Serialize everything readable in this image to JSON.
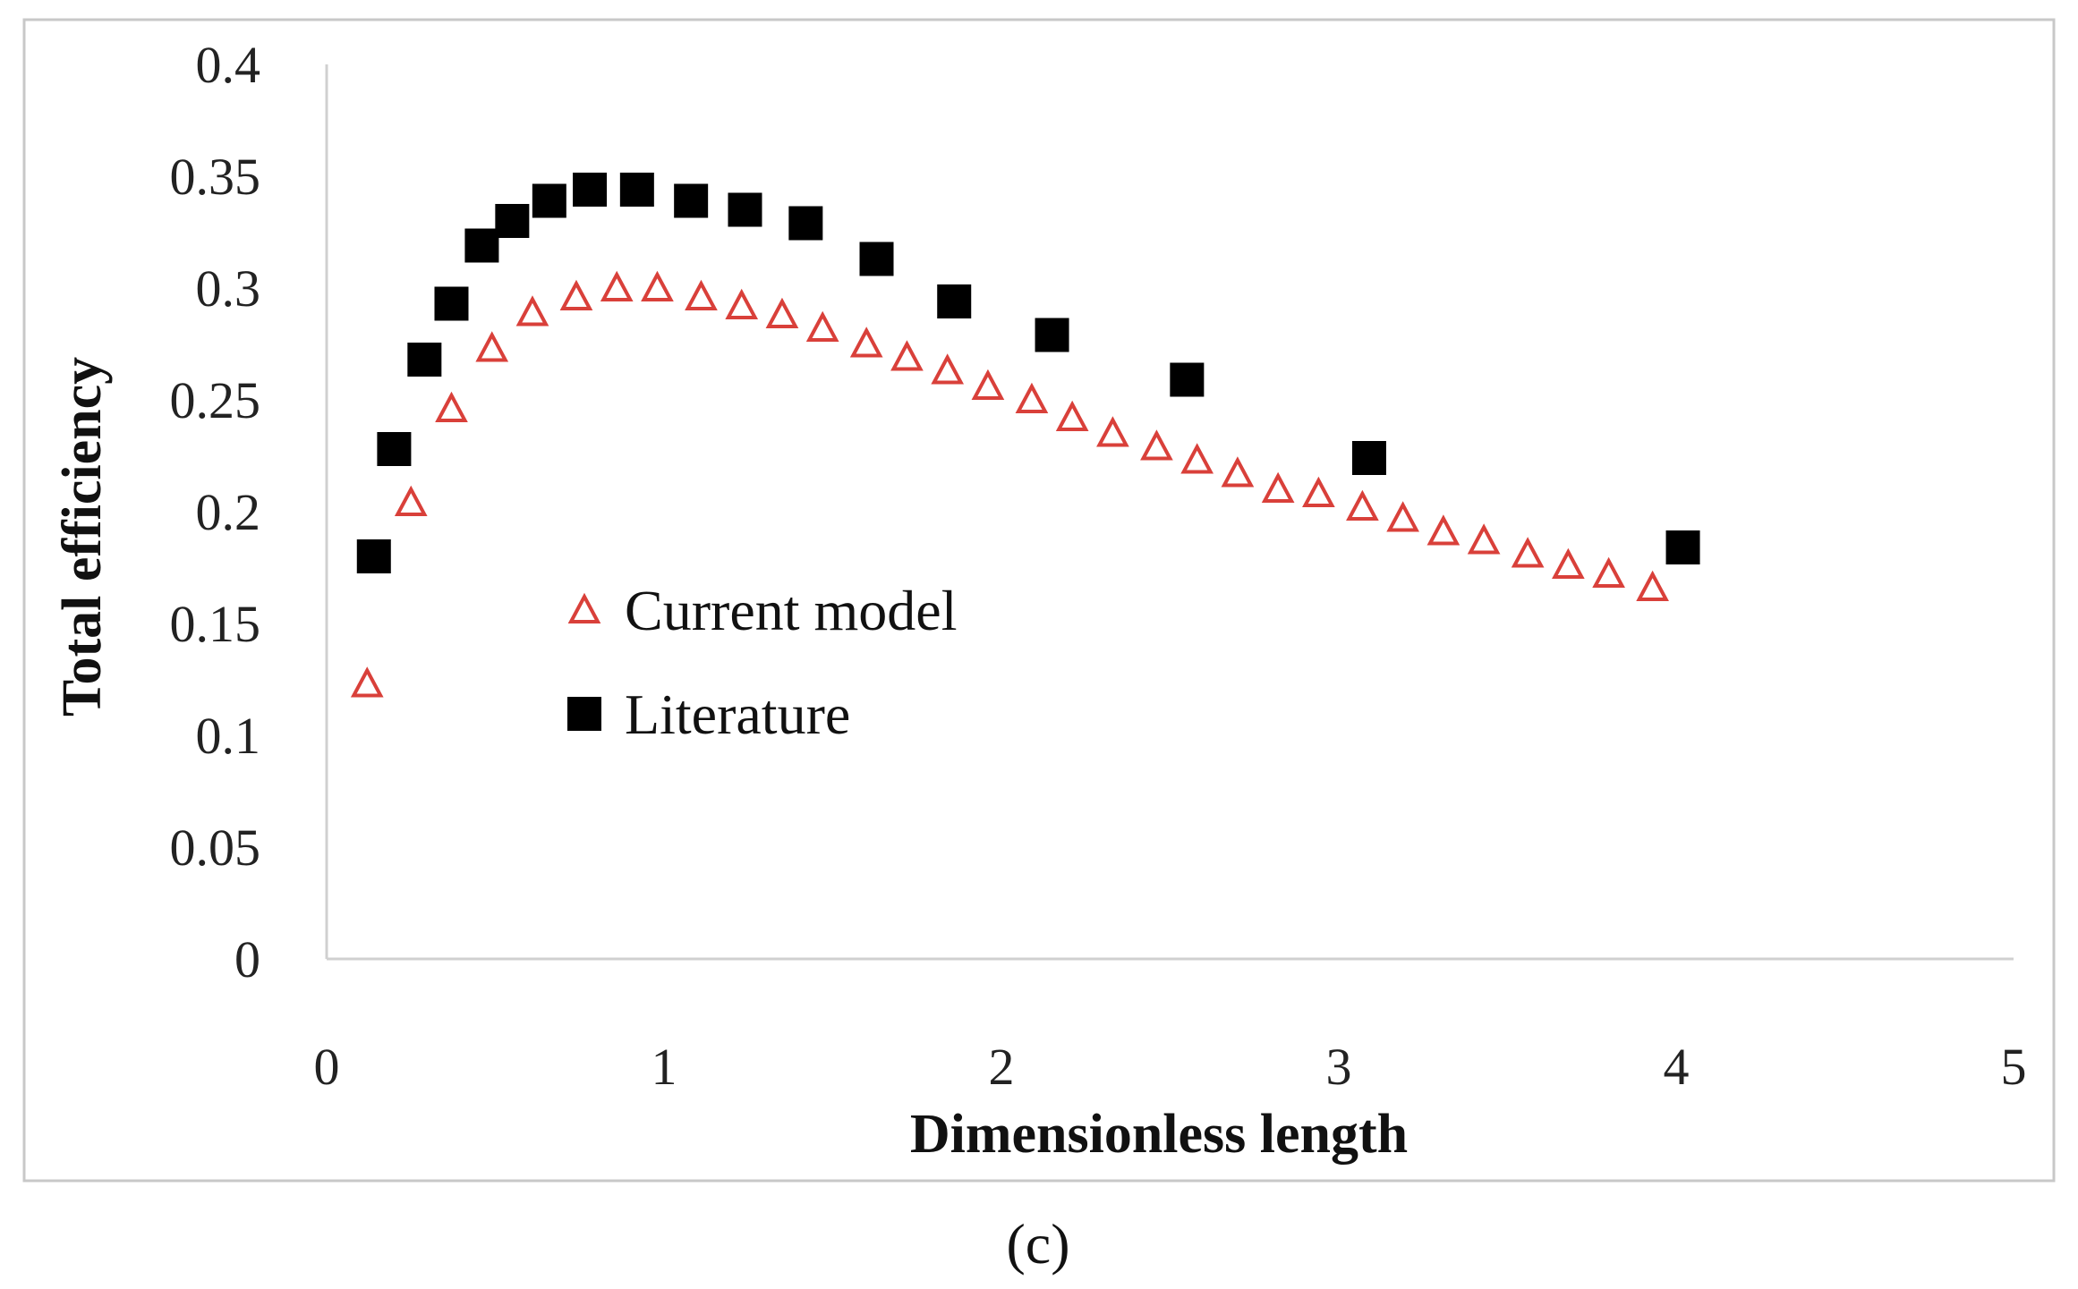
{
  "chart_data": {
    "type": "scatter",
    "title": "",
    "xlabel": "Dimensionless length",
    "ylabel": "Total efficiency",
    "panel_label": "(c)",
    "xlim": [
      0,
      5
    ],
    "ylim": [
      0,
      0.4
    ],
    "x_ticks": [
      "0",
      "1",
      "2",
      "3",
      "4",
      "5"
    ],
    "y_ticks": [
      "0",
      "0.05",
      "0.1",
      "0.15",
      "0.2",
      "0.25",
      "0.3",
      "0.35",
      "0.4"
    ],
    "grid": false,
    "legend_position": "center-left",
    "series": [
      {
        "name": "Current model",
        "marker": "triangle-open",
        "color": "#d9403a",
        "points": [
          [
            0.12,
            0.123
          ],
          [
            0.25,
            0.204
          ],
          [
            0.37,
            0.246
          ],
          [
            0.49,
            0.273
          ],
          [
            0.61,
            0.289
          ],
          [
            0.74,
            0.296
          ],
          [
            0.86,
            0.3
          ],
          [
            0.98,
            0.3
          ],
          [
            1.11,
            0.296
          ],
          [
            1.23,
            0.292
          ],
          [
            1.35,
            0.288
          ],
          [
            1.47,
            0.282
          ],
          [
            1.6,
            0.275
          ],
          [
            1.72,
            0.269
          ],
          [
            1.84,
            0.263
          ],
          [
            1.96,
            0.256
          ],
          [
            2.09,
            0.25
          ],
          [
            2.21,
            0.242
          ],
          [
            2.33,
            0.235
          ],
          [
            2.46,
            0.229
          ],
          [
            2.58,
            0.223
          ],
          [
            2.7,
            0.217
          ],
          [
            2.82,
            0.21
          ],
          [
            2.94,
            0.208
          ],
          [
            3.07,
            0.202
          ],
          [
            3.19,
            0.197
          ],
          [
            3.31,
            0.191
          ],
          [
            3.43,
            0.187
          ],
          [
            3.56,
            0.181
          ],
          [
            3.68,
            0.176
          ],
          [
            3.8,
            0.172
          ],
          [
            3.93,
            0.166
          ]
        ]
      },
      {
        "name": "Literature",
        "marker": "square-filled",
        "color": "#000000",
        "points": [
          [
            0.14,
            0.18
          ],
          [
            0.2,
            0.228
          ],
          [
            0.29,
            0.268
          ],
          [
            0.37,
            0.293
          ],
          [
            0.46,
            0.319
          ],
          [
            0.55,
            0.33
          ],
          [
            0.66,
            0.339
          ],
          [
            0.78,
            0.344
          ],
          [
            0.92,
            0.344
          ],
          [
            1.08,
            0.339
          ],
          [
            1.24,
            0.335
          ],
          [
            1.42,
            0.329
          ],
          [
            1.63,
            0.313
          ],
          [
            1.86,
            0.294
          ],
          [
            2.15,
            0.279
          ],
          [
            2.55,
            0.259
          ],
          [
            3.09,
            0.224
          ],
          [
            4.02,
            0.184
          ]
        ]
      }
    ]
  }
}
